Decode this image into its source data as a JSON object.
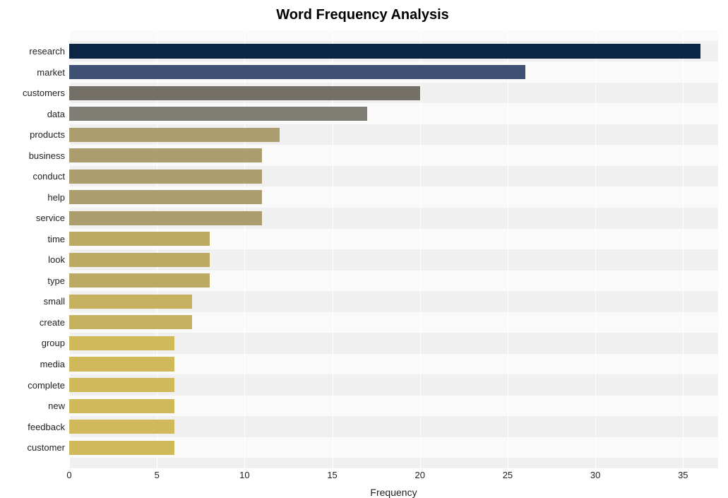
{
  "chart": {
    "type": "bar-horizontal",
    "title": "Word Frequency Analysis",
    "title_fontsize": 20,
    "title_fontweight": "700",
    "xlabel": "Frequency",
    "xlabel_fontsize": 14,
    "background_color": "#ffffff",
    "plot_stripe_light": "#fafafa",
    "plot_stripe_dark": "#f0f0f0",
    "grid_color": "#ffffff",
    "tick_color": "#1f1f1f",
    "tick_fontsize": 13,
    "xlim": [
      0,
      37
    ],
    "xticks": [
      0,
      5,
      10,
      15,
      20,
      25,
      30,
      35
    ],
    "bar_height_ratio": 0.68,
    "categories": [
      "research",
      "market",
      "customers",
      "data",
      "products",
      "business",
      "conduct",
      "help",
      "service",
      "time",
      "look",
      "type",
      "small",
      "create",
      "group",
      "media",
      "complete",
      "new",
      "feedback",
      "customer"
    ],
    "values": [
      36,
      26,
      20,
      17,
      12,
      11,
      11,
      11,
      11,
      8,
      8,
      8,
      7,
      7,
      6,
      6,
      6,
      6,
      6,
      6
    ],
    "bar_colors": [
      "#0b2545",
      "#3f5173",
      "#757067",
      "#807d75",
      "#ab9d6e",
      "#ab9d6e",
      "#ab9d6e",
      "#ab9d6e",
      "#ab9d6e",
      "#bcaa62",
      "#bcaa62",
      "#bcaa62",
      "#c5b160",
      "#c5b160",
      "#cfb95b",
      "#cfb95b",
      "#cfb95b",
      "#cfb95b",
      "#cfb95b",
      "#cfb95b"
    ]
  }
}
